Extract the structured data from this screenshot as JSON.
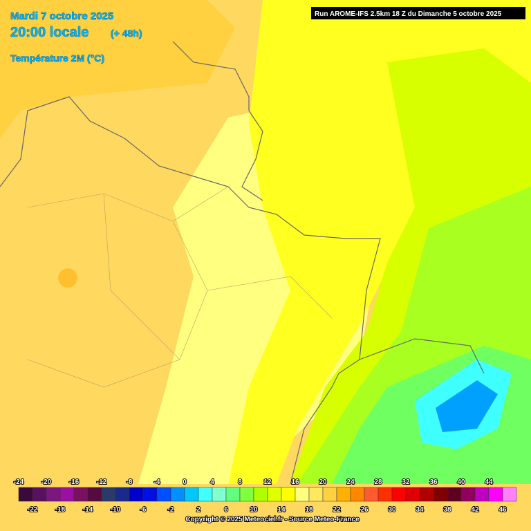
{
  "header": {
    "date": "Mardi 7 octobre 2025",
    "time": "20:00 locale",
    "lead": "(+ 48h)",
    "parameter": "Température 2M (°C)"
  },
  "run_info": "Run AROME-IFS 2.5km 18 Z du Dimanche 5 octobre 2025",
  "legend": {
    "items": [
      {
        "value": -24,
        "color": "#3a0a3a"
      },
      {
        "value": -22,
        "color": "#5a1060"
      },
      {
        "value": -20,
        "color": "#7a1880"
      },
      {
        "value": -18,
        "color": "#9a10a0"
      },
      {
        "value": -16,
        "color": "#7a1060"
      },
      {
        "value": -14,
        "color": "#550a40"
      },
      {
        "value": -12,
        "color": "#2a3a6a"
      },
      {
        "value": -10,
        "color": "#1a2a8a"
      },
      {
        "value": -8,
        "color": "#0000c8"
      },
      {
        "value": -6,
        "color": "#0010e0"
      },
      {
        "value": -4,
        "color": "#0050ff"
      },
      {
        "value": -2,
        "color": "#0090ff"
      },
      {
        "value": 0,
        "color": "#00c8ff"
      },
      {
        "value": 2,
        "color": "#40ffff"
      },
      {
        "value": 4,
        "color": "#80ffd0"
      },
      {
        "value": 6,
        "color": "#60ff80"
      },
      {
        "value": 8,
        "color": "#80ff40"
      },
      {
        "value": 10,
        "color": "#b0ff00"
      },
      {
        "value": 12,
        "color": "#e0ff00"
      },
      {
        "value": 14,
        "color": "#ffff00"
      },
      {
        "value": 16,
        "color": "#ffff80"
      },
      {
        "value": 18,
        "color": "#ffe860"
      },
      {
        "value": 20,
        "color": "#ffd040"
      },
      {
        "value": 22,
        "color": "#ffb000"
      },
      {
        "value": 24,
        "color": "#ff8800"
      },
      {
        "value": 26,
        "color": "#ff5a30"
      },
      {
        "value": 28,
        "color": "#ff3000"
      },
      {
        "value": 30,
        "color": "#ff0000"
      },
      {
        "value": 32,
        "color": "#e00000"
      },
      {
        "value": 34,
        "color": "#b00000"
      },
      {
        "value": 36,
        "color": "#800000"
      },
      {
        "value": 38,
        "color": "#600020"
      },
      {
        "value": 40,
        "color": "#900060"
      },
      {
        "value": 42,
        "color": "#c000c0"
      },
      {
        "value": 44,
        "color": "#ff00ff"
      },
      {
        "value": 46,
        "color": "#ff80ff"
      }
    ]
  },
  "copyright": "Copyright © 2025 Meteociel.fr - Source Meteo-France"
}
